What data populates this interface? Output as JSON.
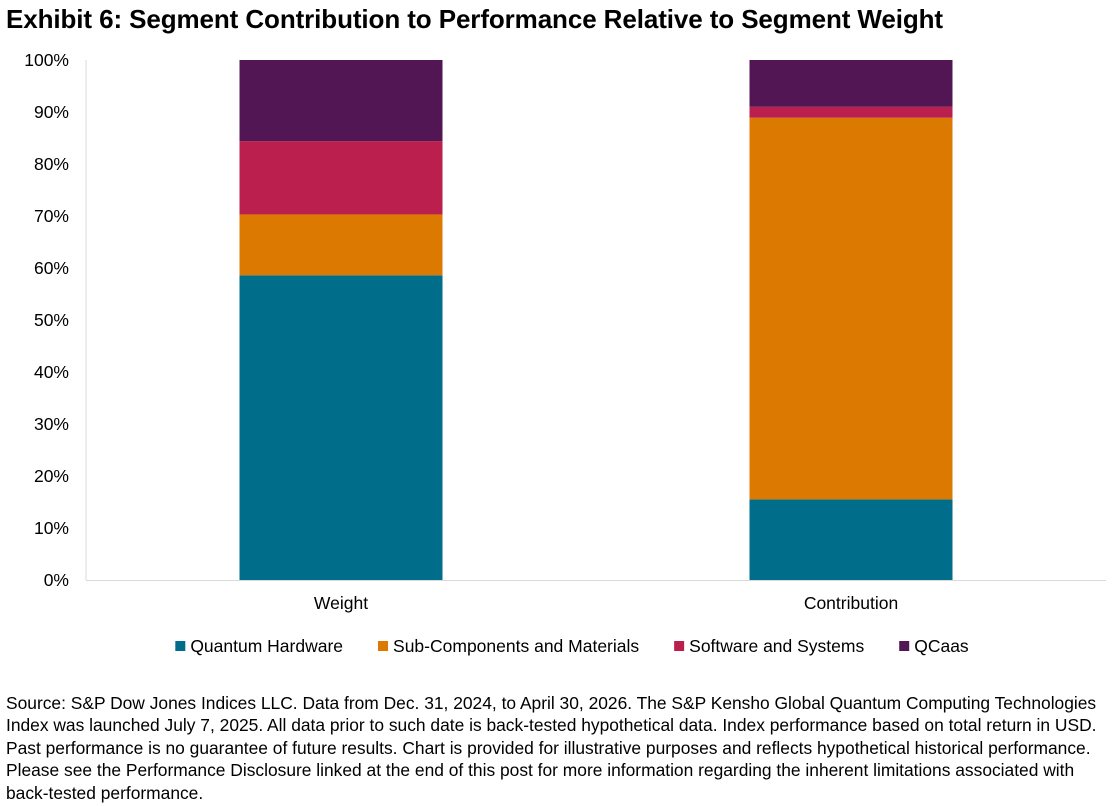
{
  "title": "Exhibit 6: Segment Contribution to Performance Relative to Segment Weight",
  "source": "Source: S&P Dow Jones Indices LLC. Data from Dec. 31, 2024, to April 30, 2026. The S&P Kensho Global Quantum Computing Technologies Index was launched July 7, 2025. All data prior to such date is back-tested hypothetical data. Index performance based on total return in USD. Past performance is no guarantee of future results. Chart is provided for illustrative purposes and reflects hypothetical historical performance. Please see the Performance Disclosure linked at the end of this post for more information regarding the inherent limitations associated with back-tested performance.",
  "chart_data": {
    "type": "bar",
    "stacked": true,
    "categories": [
      "Weight",
      "Contribution"
    ],
    "series": [
      {
        "name": "Quantum Hardware",
        "color": "#006E8A",
        "values": [
          58.6,
          15.5
        ]
      },
      {
        "name": "Sub-Components and Materials",
        "color": "#DC7900",
        "values": [
          11.7,
          73.4
        ]
      },
      {
        "name": "Software and Systems",
        "color": "#BB1F4E",
        "values": [
          14.1,
          2.1
        ]
      },
      {
        "name": "QCaas",
        "color": "#511653",
        "values": [
          15.6,
          9.0
        ]
      }
    ],
    "ylim": [
      0,
      100
    ],
    "yticks": [
      "0%",
      "10%",
      "20%",
      "30%",
      "40%",
      "50%",
      "60%",
      "70%",
      "80%",
      "90%",
      "100%"
    ],
    "grid": false,
    "legend_position": "bottom"
  }
}
